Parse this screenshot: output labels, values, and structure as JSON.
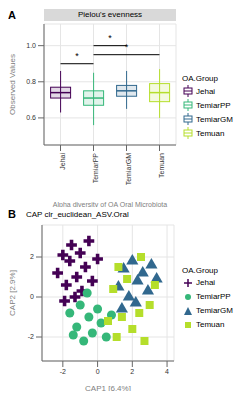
{
  "chart_data": [
    {
      "type": "box",
      "panel": "A",
      "title": "Pielou's evenness",
      "x_label": "Alpha diversity of OA Oral Microbiota",
      "y_label": "Observed Values",
      "legend_title": "OA.Group",
      "legend": "right",
      "grid": true,
      "categories": [
        "Jehai",
        "TemiarPP",
        "TemiarGM",
        "Temuan"
      ],
      "colors": [
        "#440154",
        "#35b779",
        "#31688e",
        "#b5de2b"
      ],
      "median": [
        0.74,
        0.71,
        0.75,
        0.74
      ],
      "q1": [
        0.71,
        0.67,
        0.72,
        0.69
      ],
      "q3": [
        0.77,
        0.75,
        0.78,
        0.79
      ],
      "whisker_low": [
        0.63,
        0.56,
        0.65,
        0.6
      ],
      "whisker_high": [
        0.86,
        0.85,
        0.86,
        0.87
      ],
      "ylim": [
        0.45,
        1.12
      ],
      "yticks": [
        0.6,
        0.8,
        {
          "value": 1,
          "label": "1.0"
        }
      ],
      "annotations": [
        {
          "from": "Jehai",
          "to": "TemiarPP",
          "y": 0.9,
          "label": "*"
        },
        {
          "from": "TemiarPP",
          "to": "TemiarGM",
          "y": 1.0,
          "label": "*"
        },
        {
          "from": "TemiarPP",
          "to": "Temuan",
          "y": 0.95,
          "label": "*"
        }
      ]
    },
    {
      "type": "scatter",
      "panel": "B",
      "title": "CAP clr_euclidean_ASV.Oral",
      "x_label": "CAP1 [6.4%]",
      "y_label": "CAP2 [2.9%]",
      "legend_title": "OA.Group",
      "legend": "right",
      "xlim": [
        -3.2,
        4.4
      ],
      "xticks": [
        -2,
        0,
        2,
        4
      ],
      "ylim": [
        -3.2,
        3.6
      ],
      "yticks": [
        -2,
        0,
        2
      ],
      "series": [
        {
          "name": "Jehai",
          "color": "#440154",
          "marker": "cross",
          "x": [
            -2.3,
            -2.0,
            -1.8,
            -1.6,
            -1.5,
            -1.2,
            -1.0,
            -0.9,
            -0.7,
            -0.5,
            -0.3,
            -1.9,
            -1.3,
            0.0
          ],
          "y": [
            1.2,
            2.1,
            0.6,
            1.8,
            2.6,
            1.0,
            2.2,
            0.3,
            1.5,
            2.8,
            0.8,
            -0.2,
            0.0,
            1.9
          ]
        },
        {
          "name": "TemiarPP",
          "color": "#35b779",
          "marker": "circle",
          "x": [
            -1.6,
            -1.2,
            -1.0,
            -0.8,
            -0.5,
            -0.3,
            0.0,
            0.2,
            0.5,
            -1.4,
            0.8,
            -0.6
          ],
          "y": [
            -0.8,
            -1.5,
            -0.4,
            -2.2,
            -1.0,
            -1.8,
            -0.6,
            -1.3,
            -2.0,
            -1.9,
            -0.9,
            0.2
          ]
        },
        {
          "name": "TemiarGM",
          "color": "#31688e",
          "marker": "triangle",
          "x": [
            1.2,
            1.5,
            1.8,
            2.0,
            2.3,
            2.6,
            2.9,
            3.1,
            1.4,
            2.2,
            3.4
          ],
          "y": [
            0.5,
            1.4,
            0.0,
            1.8,
            0.8,
            1.2,
            0.3,
            1.6,
            -0.6,
            -0.3,
            0.9
          ]
        },
        {
          "name": "Temuan",
          "color": "#b5de2b",
          "marker": "square",
          "x": [
            0.6,
            0.9,
            1.1,
            1.4,
            1.7,
            2.0,
            2.4,
            2.7,
            3.0,
            3.3,
            1.2,
            2.5
          ],
          "y": [
            -1.2,
            0.4,
            -2.0,
            -1.0,
            0.9,
            -1.6,
            -0.8,
            -2.2,
            -0.4,
            0.6,
            1.5,
            2.0
          ]
        }
      ]
    }
  ]
}
